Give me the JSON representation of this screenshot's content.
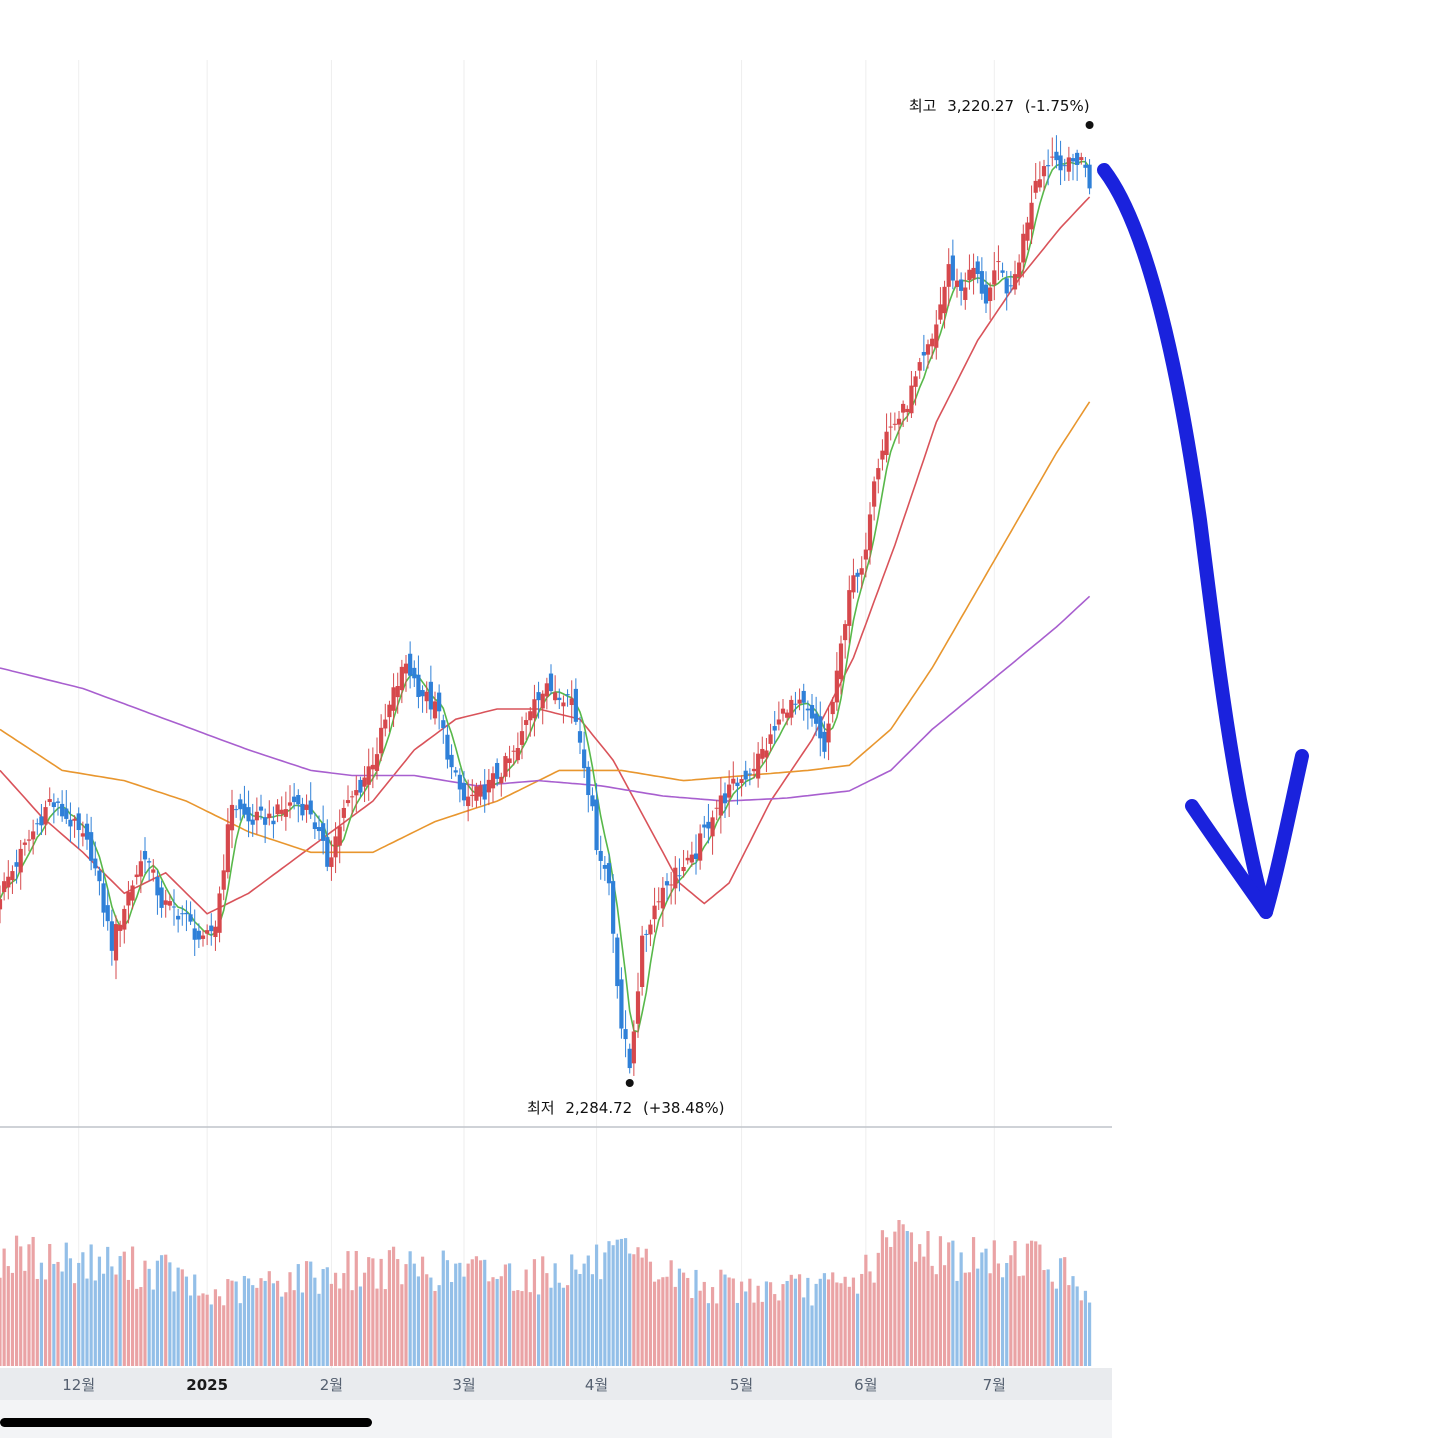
{
  "colors": {
    "up": "#d6484c",
    "down": "#2f80d8",
    "vol_up": "#eaa3a5",
    "vol_down": "#93bfe8",
    "ma5": "#58b84a",
    "ma20": "#d9535a",
    "ma60": "#e8962e",
    "ma120": "#a85fcf",
    "annotation_arrow": "#1a22dd",
    "grid": "#eeeeee",
    "axis_band": "#e9ebee",
    "scrollbar": "#000000"
  },
  "annotations": {
    "high": {
      "label": "최고",
      "value": "3,220.27",
      "change": "(-1.75%)"
    },
    "low": {
      "label": "최저",
      "value": "2,284.72",
      "change": "(+38.48%)"
    }
  },
  "arrow_icon": "hand-drawn-down-arrow-icon",
  "chart_data": {
    "type": "candlestick",
    "title": "",
    "xlabel": "",
    "ylabel": "",
    "ylim": [
      2250,
      3300
    ],
    "x_ticks": [
      {
        "label": "12월",
        "day": 19
      },
      {
        "label": "2025",
        "day": 50
      },
      {
        "label": "2월",
        "day": 80
      },
      {
        "label": "3월",
        "day": 112
      },
      {
        "label": "4월",
        "day": 144
      },
      {
        "label": "5월",
        "day": 179
      },
      {
        "label": "6월",
        "day": 209
      },
      {
        "label": "7월",
        "day": 240
      }
    ],
    "x_range": [
      0,
      266
    ],
    "grid": true,
    "high": 3220.27,
    "low": 2284.72,
    "price_anchors": [
      {
        "day": 0,
        "price": 2470
      },
      {
        "day": 4,
        "price": 2500
      },
      {
        "day": 12,
        "price": 2560
      },
      {
        "day": 17,
        "price": 2540
      },
      {
        "day": 22,
        "price": 2510
      },
      {
        "day": 27,
        "price": 2420
      },
      {
        "day": 31,
        "price": 2470
      },
      {
        "day": 35,
        "price": 2510
      },
      {
        "day": 39,
        "price": 2460
      },
      {
        "day": 44,
        "price": 2450
      },
      {
        "day": 49,
        "price": 2420
      },
      {
        "day": 52,
        "price": 2440
      },
      {
        "day": 56,
        "price": 2560
      },
      {
        "day": 60,
        "price": 2540
      },
      {
        "day": 66,
        "price": 2545
      },
      {
        "day": 71,
        "price": 2560
      },
      {
        "day": 75,
        "price": 2550
      },
      {
        "day": 79,
        "price": 2500
      },
      {
        "day": 83,
        "price": 2550
      },
      {
        "day": 87,
        "price": 2575
      },
      {
        "day": 91,
        "price": 2610
      },
      {
        "day": 95,
        "price": 2665
      },
      {
        "day": 98,
        "price": 2695
      },
      {
        "day": 101,
        "price": 2670
      },
      {
        "day": 104,
        "price": 2655
      },
      {
        "day": 106,
        "price": 2645
      },
      {
        "day": 109,
        "price": 2590
      },
      {
        "day": 112,
        "price": 2560
      },
      {
        "day": 117,
        "price": 2570
      },
      {
        "day": 121,
        "price": 2590
      },
      {
        "day": 125,
        "price": 2610
      },
      {
        "day": 129,
        "price": 2665
      },
      {
        "day": 134,
        "price": 2670
      },
      {
        "day": 138,
        "price": 2660
      },
      {
        "day": 141,
        "price": 2600
      },
      {
        "day": 144,
        "price": 2520
      },
      {
        "day": 147,
        "price": 2480
      },
      {
        "day": 150,
        "price": 2340
      },
      {
        "day": 152,
        "price": 2300
      },
      {
        "day": 155,
        "price": 2420
      },
      {
        "day": 159,
        "price": 2470
      },
      {
        "day": 163,
        "price": 2490
      },
      {
        "day": 167,
        "price": 2500
      },
      {
        "day": 172,
        "price": 2550
      },
      {
        "day": 176,
        "price": 2570
      },
      {
        "day": 181,
        "price": 2590
      },
      {
        "day": 186,
        "price": 2620
      },
      {
        "day": 190,
        "price": 2655
      },
      {
        "day": 194,
        "price": 2650
      },
      {
        "day": 197,
        "price": 2630
      },
      {
        "day": 199,
        "price": 2610
      },
      {
        "day": 202,
        "price": 2680
      },
      {
        "day": 205,
        "price": 2770
      },
      {
        "day": 208,
        "price": 2780
      },
      {
        "day": 211,
        "price": 2880
      },
      {
        "day": 214,
        "price": 2920
      },
      {
        "day": 218,
        "price": 2940
      },
      {
        "day": 222,
        "price": 2980
      },
      {
        "day": 225,
        "price": 3010
      },
      {
        "day": 229,
        "price": 3080
      },
      {
        "day": 232,
        "price": 3060
      },
      {
        "day": 235,
        "price": 3080
      },
      {
        "day": 238,
        "price": 3050
      },
      {
        "day": 241,
        "price": 3080
      },
      {
        "day": 244,
        "price": 3055
      },
      {
        "day": 247,
        "price": 3110
      },
      {
        "day": 250,
        "price": 3170
      },
      {
        "day": 254,
        "price": 3190
      },
      {
        "day": 258,
        "price": 3180
      },
      {
        "day": 261,
        "price": 3190
      },
      {
        "day": 263,
        "price": 3160
      }
    ],
    "ma_anchors": {
      "ma20": [
        {
          "day": 0,
          "price": 2590
        },
        {
          "day": 10,
          "price": 2545
        },
        {
          "day": 20,
          "price": 2510
        },
        {
          "day": 30,
          "price": 2470
        },
        {
          "day": 40,
          "price": 2490
        },
        {
          "day": 50,
          "price": 2450
        },
        {
          "day": 60,
          "price": 2470
        },
        {
          "day": 70,
          "price": 2500
        },
        {
          "day": 80,
          "price": 2530
        },
        {
          "day": 90,
          "price": 2560
        },
        {
          "day": 100,
          "price": 2610
        },
        {
          "day": 110,
          "price": 2640
        },
        {
          "day": 120,
          "price": 2650
        },
        {
          "day": 130,
          "price": 2650
        },
        {
          "day": 140,
          "price": 2640
        },
        {
          "day": 148,
          "price": 2600
        },
        {
          "day": 156,
          "price": 2540
        },
        {
          "day": 164,
          "price": 2480
        },
        {
          "day": 170,
          "price": 2460
        },
        {
          "day": 176,
          "price": 2480
        },
        {
          "day": 186,
          "price": 2560
        },
        {
          "day": 196,
          "price": 2620
        },
        {
          "day": 206,
          "price": 2700
        },
        {
          "day": 216,
          "price": 2810
        },
        {
          "day": 226,
          "price": 2930
        },
        {
          "day": 236,
          "price": 3010
        },
        {
          "day": 246,
          "price": 3070
        },
        {
          "day": 256,
          "price": 3120
        },
        {
          "day": 263,
          "price": 3150
        }
      ],
      "ma60": [
        {
          "day": 0,
          "price": 2630
        },
        {
          "day": 15,
          "price": 2590
        },
        {
          "day": 30,
          "price": 2580
        },
        {
          "day": 45,
          "price": 2560
        },
        {
          "day": 60,
          "price": 2530
        },
        {
          "day": 75,
          "price": 2510
        },
        {
          "day": 90,
          "price": 2510
        },
        {
          "day": 105,
          "price": 2540
        },
        {
          "day": 120,
          "price": 2560
        },
        {
          "day": 135,
          "price": 2590
        },
        {
          "day": 150,
          "price": 2590
        },
        {
          "day": 165,
          "price": 2580
        },
        {
          "day": 180,
          "price": 2585
        },
        {
          "day": 195,
          "price": 2590
        },
        {
          "day": 205,
          "price": 2595
        },
        {
          "day": 215,
          "price": 2630
        },
        {
          "day": 225,
          "price": 2690
        },
        {
          "day": 235,
          "price": 2760
        },
        {
          "day": 245,
          "price": 2830
        },
        {
          "day": 255,
          "price": 2900
        },
        {
          "day": 263,
          "price": 2950
        }
      ],
      "ma120": [
        {
          "day": 0,
          "price": 2690
        },
        {
          "day": 20,
          "price": 2670
        },
        {
          "day": 40,
          "price": 2640
        },
        {
          "day": 60,
          "price": 2610
        },
        {
          "day": 75,
          "price": 2590
        },
        {
          "day": 85,
          "price": 2585
        },
        {
          "day": 100,
          "price": 2585
        },
        {
          "day": 115,
          "price": 2575
        },
        {
          "day": 130,
          "price": 2580
        },
        {
          "day": 145,
          "price": 2575
        },
        {
          "day": 160,
          "price": 2565
        },
        {
          "day": 175,
          "price": 2560
        },
        {
          "day": 190,
          "price": 2563
        },
        {
          "day": 205,
          "price": 2570
        },
        {
          "day": 215,
          "price": 2590
        },
        {
          "day": 225,
          "price": 2630
        },
        {
          "day": 240,
          "price": 2680
        },
        {
          "day": 255,
          "price": 2730
        },
        {
          "day": 263,
          "price": 2760
        }
      ]
    },
    "volume_scale": [
      0,
      100
    ],
    "volume_anchors": [
      {
        "day": 0,
        "vol": 58
      },
      {
        "day": 20,
        "vol": 55
      },
      {
        "day": 40,
        "vol": 50
      },
      {
        "day": 50,
        "vol": 36
      },
      {
        "day": 70,
        "vol": 46
      },
      {
        "day": 90,
        "vol": 52
      },
      {
        "day": 110,
        "vol": 50
      },
      {
        "day": 130,
        "vol": 48
      },
      {
        "day": 150,
        "vol": 56
      },
      {
        "day": 170,
        "vol": 42
      },
      {
        "day": 190,
        "vol": 40
      },
      {
        "day": 205,
        "vol": 42
      },
      {
        "day": 218,
        "vol": 70
      },
      {
        "day": 228,
        "vol": 58
      },
      {
        "day": 240,
        "vol": 55
      },
      {
        "day": 248,
        "vol": 60
      },
      {
        "day": 263,
        "vol": 40
      }
    ]
  }
}
